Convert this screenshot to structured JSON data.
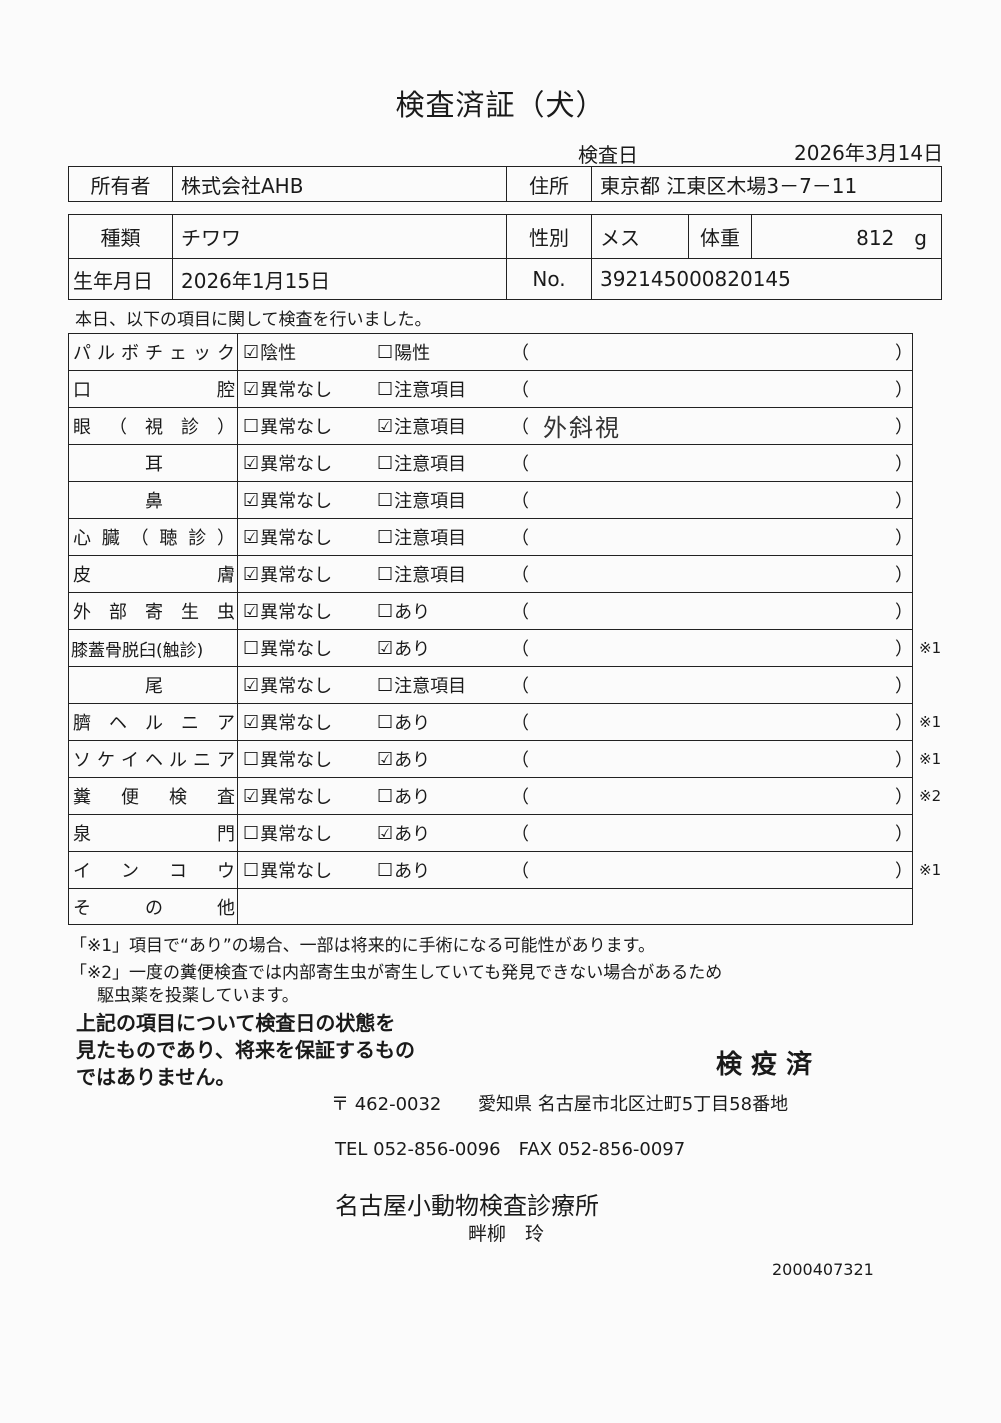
{
  "title": "検査済証（犬）",
  "exam_date_label": "検査日",
  "exam_date": "2026年3月14日",
  "owner": {
    "label": "所有者",
    "value": "株式会社AHB",
    "address_label": "住所",
    "address": "東京都 江東区木場3－7－11"
  },
  "animal": {
    "breed_label": "種類",
    "breed": "チワワ",
    "sex_label": "性別",
    "sex": "メス",
    "weight_label": "体重",
    "weight": "812　g",
    "birth_label": "生年月日",
    "birth": "2026年1月15日",
    "no_label": "No.",
    "no": "392145000820145"
  },
  "intro": "本日、以下の項目に関して検査を行いました。",
  "exam_rows": [
    {
      "label_parts": [
        "パ",
        "ル",
        "ボ",
        "チ",
        "ェ",
        "ッ",
        "ク"
      ],
      "opt1": "陰性",
      "opt1_checked": true,
      "opt2": "陽性",
      "opt2_checked": false,
      "remark": "",
      "note": ""
    },
    {
      "label_parts": [
        "口",
        "腔"
      ],
      "opt1": "異常なし",
      "opt1_checked": true,
      "opt2": "注意項目",
      "opt2_checked": false,
      "remark": "",
      "note": ""
    },
    {
      "label_parts": [
        "眼",
        "（",
        "視",
        "診",
        "）"
      ],
      "opt1": "異常なし",
      "opt1_checked": false,
      "opt2": "注意項目",
      "opt2_checked": true,
      "remark": "外斜視",
      "note": ""
    },
    {
      "label_parts": [
        "耳"
      ],
      "opt1": "異常なし",
      "opt1_checked": true,
      "opt2": "注意項目",
      "opt2_checked": false,
      "remark": "",
      "note": ""
    },
    {
      "label_parts": [
        "鼻"
      ],
      "opt1": "異常なし",
      "opt1_checked": true,
      "opt2": "注意項目",
      "opt2_checked": false,
      "remark": "",
      "note": ""
    },
    {
      "label_parts": [
        "心",
        "臓",
        "（",
        "聴",
        "診",
        "）"
      ],
      "opt1": "異常なし",
      "opt1_checked": true,
      "opt2": "注意項目",
      "opt2_checked": false,
      "remark": "",
      "note": ""
    },
    {
      "label_parts": [
        "皮",
        "膚"
      ],
      "opt1": "異常なし",
      "opt1_checked": true,
      "opt2": "注意項目",
      "opt2_checked": false,
      "remark": "",
      "note": ""
    },
    {
      "label_parts": [
        "外",
        "部",
        "寄",
        "生",
        "虫"
      ],
      "opt1": "異常なし",
      "opt1_checked": true,
      "opt2": "あり",
      "opt2_checked": false,
      "remark": "",
      "note": ""
    },
    {
      "label_parts": [
        "膝蓋骨脱臼(触診)"
      ],
      "opt1": "異常なし",
      "opt1_checked": false,
      "opt2": "あり",
      "opt2_checked": true,
      "remark": "",
      "note": "※1"
    },
    {
      "label_parts": [
        "尾"
      ],
      "opt1": "異常なし",
      "opt1_checked": true,
      "opt2": "注意項目",
      "opt2_checked": false,
      "remark": "",
      "note": ""
    },
    {
      "label_parts": [
        "臍",
        "ヘ",
        "ル",
        "ニ",
        "ア"
      ],
      "opt1": "異常なし",
      "opt1_checked": true,
      "opt2": "あり",
      "opt2_checked": false,
      "remark": "",
      "note": "※1"
    },
    {
      "label_parts": [
        "ソ",
        "ケ",
        "イ",
        "ヘ",
        "ル",
        "ニ",
        "ア"
      ],
      "opt1": "異常なし",
      "opt1_checked": false,
      "opt2": "あり",
      "opt2_checked": true,
      "remark": "",
      "note": "※1"
    },
    {
      "label_parts": [
        "糞",
        "便",
        "検",
        "査"
      ],
      "opt1": "異常なし",
      "opt1_checked": true,
      "opt2": "あり",
      "opt2_checked": false,
      "remark": "",
      "note": "※2"
    },
    {
      "label_parts": [
        "泉",
        "門"
      ],
      "opt1": "異常なし",
      "opt1_checked": false,
      "opt2": "あり",
      "opt2_checked": true,
      "remark": "",
      "note": ""
    },
    {
      "label_parts": [
        "イ",
        "ン",
        "コ",
        "ウ"
      ],
      "opt1": "異常なし",
      "opt1_checked": false,
      "opt2": "あり",
      "opt2_checked": false,
      "remark": "",
      "note": "※1"
    },
    {
      "label_parts": [
        "そ",
        "の",
        "他"
      ],
      "other": true
    }
  ],
  "footnotes": [
    "「※1」項目で“あり”の場合、一部は将来的に手術になる可能性があります。",
    "「※2」一度の糞便検査では内部寄生虫が寄生していても発見できない場合があるため",
    "駆虫薬を投薬しています。"
  ],
  "disclaimer": [
    "上記の項目について検査日の状態を",
    "見たものであり、将来を保証するもの",
    "ではありません。"
  ],
  "stamp": "検 疫 済",
  "clinic": {
    "postal": "〒 462-0032",
    "address": "愛知県 名古屋市北区辻町5丁目58番地",
    "tel": "TEL 052-856-0096　FAX 052-856-0097",
    "name": "名古屋小動物検査診療所",
    "person": "畔柳　玲"
  },
  "serial": "2000407321"
}
